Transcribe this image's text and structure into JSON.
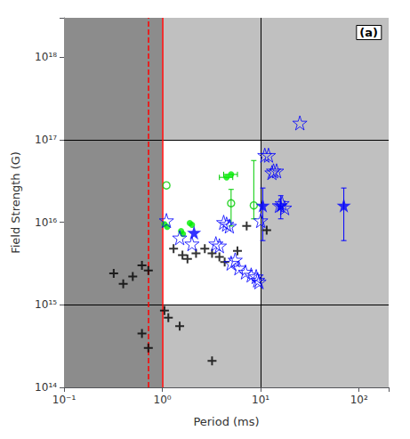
{
  "chart_data": {
    "type": "scatter",
    "title": "(a)",
    "xlabel": "Period (ms)",
    "ylabel": "Field Strength (G)",
    "log": true,
    "grid": false,
    "xlim": [
      0.1,
      200
    ],
    "ylim": [
      100000000000000.0,
      3e+18
    ],
    "xticks": [
      {
        "value": 0.1,
        "label": "10⁻¹"
      },
      {
        "value": 1,
        "label": "10⁰"
      },
      {
        "value": 10,
        "label": "10¹"
      },
      {
        "value": 100,
        "label": "10²"
      }
    ],
    "yticks": [
      {
        "value": 100000000000000.0,
        "label": "10¹⁴"
      },
      {
        "value": 1000000000000000.0,
        "label": "10¹⁵"
      },
      {
        "value": 1e+16,
        "label": "10¹⁶"
      },
      {
        "value": 1e+17,
        "label": "10¹⁷"
      },
      {
        "value": 1e+18,
        "label": "10¹⁸"
      }
    ],
    "zones": [
      {
        "x": [
          0.1,
          1.0
        ],
        "y": [
          100000000000000.0,
          1000000000000000.0
        ],
        "color": "#8c8c8c"
      },
      {
        "x": [
          0.1,
          1.0
        ],
        "y": [
          1000000000000000.0,
          1e+17
        ],
        "color": "#8c8c8c"
      },
      {
        "x": [
          0.1,
          1.0
        ],
        "y": [
          1e+17,
          3e+18
        ],
        "color": "#8c8c8c"
      },
      {
        "x": [
          1.0,
          10.0
        ],
        "y": [
          100000000000000.0,
          1000000000000000.0
        ],
        "color": "#c0c0c0"
      },
      {
        "x": [
          1.0,
          10.0
        ],
        "y": [
          1000000000000000.0,
          1e+17
        ],
        "color": "#ffffff"
      },
      {
        "x": [
          1.0,
          10.0
        ],
        "y": [
          1e+17,
          3e+18
        ],
        "color": "#c0c0c0"
      },
      {
        "x": [
          10.0,
          200.0
        ],
        "y": [
          100000000000000.0,
          1000000000000000.0
        ],
        "color": "#c0c0c0"
      },
      {
        "x": [
          10.0,
          200.0
        ],
        "y": [
          1000000000000000.0,
          1e+17
        ],
        "color": "#c0c0c0"
      },
      {
        "x": [
          10.0,
          200.0
        ],
        "y": [
          1e+17,
          3e+18
        ],
        "color": "#c0c0c0"
      }
    ],
    "lines": [
      {
        "axis": "y",
        "value": 1000000000000000.0,
        "color": "black",
        "line_style": "solid"
      },
      {
        "axis": "y",
        "value": 1e+17,
        "color": "black",
        "line_style": "solid"
      },
      {
        "axis": "x",
        "value": 10.0,
        "color": "black",
        "line_style": "solid"
      },
      {
        "axis": "x",
        "value": 1.0,
        "color": "red",
        "line_style": "solid"
      },
      {
        "axis": "x",
        "value": 0.72,
        "color": "red",
        "line_style": "dashed"
      }
    ],
    "series": [
      {
        "marker": "cross",
        "color": "black",
        "points": [
          [
            0.32,
            2400000000000000.0
          ],
          [
            0.4,
            1800000000000000.0
          ],
          [
            0.5,
            2200000000000000.0
          ],
          [
            0.62,
            3000000000000000.0
          ],
          [
            0.72,
            2600000000000000.0
          ],
          [
            0.62,
            450000000000000.0
          ],
          [
            0.72,
            300000000000000.0
          ],
          [
            1.05,
            850000000000000.0
          ],
          [
            1.15,
            700000000000000.0
          ],
          [
            1.3,
            4800000000000000.0
          ],
          [
            1.6,
            4000000000000000.0
          ],
          [
            1.8,
            3600000000000000.0
          ],
          [
            2.2,
            4200000000000000.0
          ],
          [
            2.7,
            4800000000000000.0
          ],
          [
            3.2,
            4200000000000000.0
          ],
          [
            3.8,
            3800000000000000.0
          ],
          [
            4.3,
            3300000000000000.0
          ],
          [
            5.8,
            4500000000000000.0
          ],
          [
            7.2,
            9000000000000000.0
          ],
          [
            11.5,
            8000000000000000.0
          ],
          [
            1.5,
            550000000000000.0
          ],
          [
            3.2,
            210000000000000.0
          ]
        ]
      },
      {
        "marker": "circle",
        "color": "#00ee00",
        "points": [
          [
            1.05,
            9500000000000000.0
          ],
          [
            1.12,
            8800000000000000.0
          ],
          [
            1.9,
            9800000000000000.0
          ],
          [
            2.0,
            9300000000000000.0
          ],
          [
            1.55,
            7800000000000000.0
          ],
          [
            1.62,
            7200000000000000.0
          ],
          [
            4.5,
            3.5e+16
          ],
          [
            5.0,
            3.8e+16
          ]
        ],
        "error_bars": [
          {
            "x": 4.5,
            "y": 3.5e+16,
            "xerr": 0.7,
            "color": "#00cc00"
          },
          {
            "x": 5.0,
            "y": 3.8e+16,
            "xerr": 0.8,
            "color": "#00cc00"
          }
        ]
      },
      {
        "marker": "open circle",
        "color": "#00cc00",
        "points": [
          [
            1.1,
            2.8e+16
          ],
          [
            5.0,
            1.7e+16
          ],
          [
            8.5,
            1.6e+16
          ]
        ],
        "error_bars": [
          {
            "x": 5.0,
            "y": 1.7e+16,
            "yerr_lo": 8000000000000000.0,
            "yerr_hi": 8000000000000000.0,
            "color": "#00cc00"
          },
          {
            "x": 8.5,
            "y": 1.6e+16,
            "yerr_lo": 5000000000000000.0,
            "yerr_hi": 4e+16,
            "color": "#00cc00"
          }
        ]
      },
      {
        "marker": "star",
        "color": "blue",
        "points": [
          [
            2.1,
            7500000000000000.0
          ],
          [
            10.5,
            1.6e+16
          ],
          [
            16.0,
            1.6e+16
          ],
          [
            70.0,
            1.6e+16
          ]
        ],
        "error_bars": [
          {
            "x": 10.5,
            "y": 1.6e+16,
            "yerr_lo": 1e+16,
            "yerr_hi": 1e+16,
            "color": "blue"
          },
          {
            "x": 16.0,
            "y": 1.6e+16,
            "yerr_lo": 5000000000000000.0,
            "yerr_hi": 5000000000000000.0,
            "color": "blue"
          },
          {
            "x": 70.0,
            "y": 1.6e+16,
            "yerr_lo": 1e+16,
            "yerr_hi": 1e+16,
            "color": "blue"
          }
        ]
      },
      {
        "marker": "open star",
        "color": "blue",
        "points": [
          [
            1.1,
            1.05e+16
          ],
          [
            1.5,
            6500000000000000.0
          ],
          [
            2.0,
            5500000000000000.0
          ],
          [
            3.5,
            5500000000000000.0
          ],
          [
            3.8,
            5200000000000000.0
          ],
          [
            4.2,
            1e+16
          ],
          [
            4.5,
            9500000000000000.0
          ],
          [
            4.8,
            9000000000000000.0
          ],
          [
            5.0,
            3200000000000000.0
          ],
          [
            5.5,
            3500000000000000.0
          ],
          [
            6.0,
            2800000000000000.0
          ],
          [
            7.0,
            2500000000000000.0
          ],
          [
            8.0,
            2300000000000000.0
          ],
          [
            9.0,
            2200000000000000.0
          ],
          [
            9.3,
            2000000000000000.0
          ],
          [
            9.6,
            1900000000000000.0
          ],
          [
            10.0,
            1.05e+16
          ],
          [
            11.0,
            6.5e+16
          ],
          [
            12.0,
            6.5e+16
          ],
          [
            13.0,
            4e+16
          ],
          [
            13.5,
            4.2e+16
          ],
          [
            14.5,
            4.2e+16
          ],
          [
            15.5,
            1.6e+16
          ],
          [
            16.5,
            1.7e+16
          ],
          [
            17.5,
            1.5e+16
          ],
          [
            25.0,
            1.6e+17
          ]
        ]
      }
    ]
  }
}
